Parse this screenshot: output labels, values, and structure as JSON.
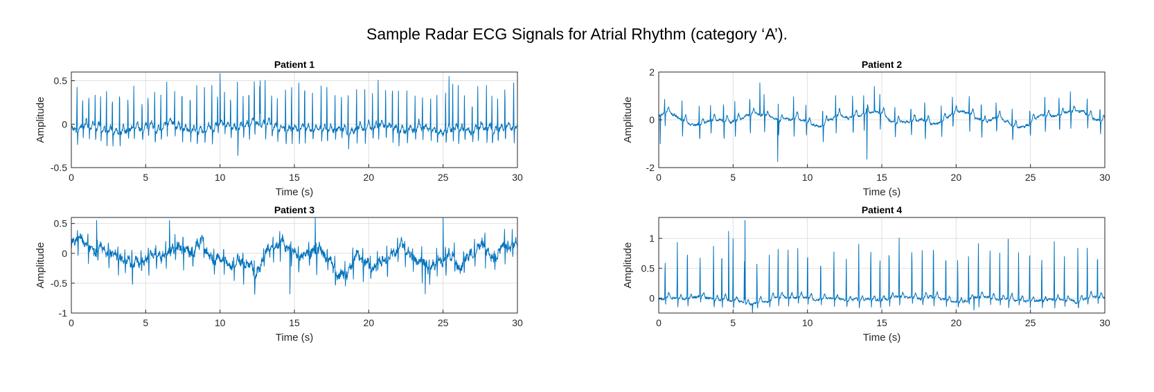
{
  "figure": {
    "title": "Sample Radar ECG Signals for Atrial Rhythm (category ‘A’)."
  },
  "colors": {
    "signal": "#0072BD",
    "axes": "#262626",
    "grid": "#dfdfdf",
    "background": "#ffffff"
  },
  "chart_data": [
    {
      "type": "line",
      "title": "Patient 1",
      "xlabel": "Time (s)",
      "ylabel": "Amplitude",
      "xlim": [
        0,
        30
      ],
      "ylim": [
        -0.5,
        0.6
      ],
      "xticks": [
        0,
        5,
        10,
        15,
        20,
        25,
        30
      ],
      "xtick_labels": [
        "0",
        "5",
        "10",
        "15",
        "20",
        "25",
        "30"
      ],
      "yticks": [
        -0.5,
        0,
        0.5
      ],
      "ytick_labels": [
        "-0.5",
        "0",
        "0.5"
      ],
      "grid": true,
      "signal": {
        "baseline": -0.05,
        "noise": 0.04,
        "beat_interval": 0.48,
        "peak": 0.52,
        "dip": -0.17,
        "t_wave": 0.06,
        "wander": 0.02,
        "extremes": [
          [
            10.0,
            0.58
          ],
          [
            11.2,
            -0.36
          ],
          [
            12.7,
            0.5
          ],
          [
            25.4,
            0.55
          ]
        ]
      }
    },
    {
      "type": "line",
      "title": "Patient 2",
      "xlabel": "Time (s)",
      "ylabel": "Amplitude",
      "xlim": [
        0,
        30
      ],
      "ylim": [
        -2,
        2
      ],
      "xticks": [
        0,
        5,
        10,
        15,
        20,
        25,
        30
      ],
      "xtick_labels": [
        "0",
        "5",
        "10",
        "15",
        "20",
        "25",
        "30"
      ],
      "yticks": [
        -2,
        0,
        2
      ],
      "ytick_labels": [
        "-2",
        "0",
        "2"
      ],
      "grid": true,
      "signal": {
        "baseline": 0.05,
        "noise": 0.08,
        "beat_interval": 0.95,
        "peak": 0.9,
        "dip": -0.8,
        "t_wave": 0.25,
        "wander": 0.2,
        "extremes": [
          [
            0.1,
            -1.0
          ],
          [
            6.8,
            1.55
          ],
          [
            8.0,
            -1.75
          ],
          [
            14.0,
            -1.65
          ],
          [
            14.5,
            1.4
          ]
        ]
      }
    },
    {
      "type": "line",
      "title": "Patient 3",
      "xlabel": "Time (s)",
      "ylabel": "Amplitude",
      "xlim": [
        0,
        30
      ],
      "ylim": [
        -1,
        0.6
      ],
      "xticks": [
        0,
        5,
        10,
        15,
        20,
        25,
        30
      ],
      "xtick_labels": [
        "0",
        "5",
        "10",
        "15",
        "20",
        "25",
        "30"
      ],
      "yticks": [
        -1,
        -0.5,
        0,
        0.5
      ],
      "ytick_labels": [
        "-1",
        "-0.5",
        "0",
        "0.5"
      ],
      "grid": true,
      "signal": {
        "baseline": -0.05,
        "noise": 0.12,
        "beat_interval": 0.6,
        "peak": 0.25,
        "dip": -0.3,
        "t_wave": 0.05,
        "wander": 0.15,
        "extremes": [
          [
            1.7,
            0.55
          ],
          [
            6.6,
            0.55
          ],
          [
            14.7,
            -0.68
          ],
          [
            16.4,
            0.6
          ],
          [
            23.8,
            -0.68
          ],
          [
            25.0,
            0.62
          ]
        ]
      }
    },
    {
      "type": "line",
      "title": "Patient 4",
      "xlabel": "Time (s)",
      "ylabel": "Amplitude",
      "xlim": [
        0,
        30
      ],
      "ylim": [
        -0.25,
        1.35
      ],
      "xticks": [
        0,
        5,
        10,
        15,
        20,
        25,
        30
      ],
      "xtick_labels": [
        "0",
        "5",
        "10",
        "15",
        "20",
        "25",
        "30"
      ],
      "yticks": [
        0,
        0.5,
        1
      ],
      "ytick_labels": [
        "0",
        "0.5",
        "1"
      ],
      "grid": true,
      "signal": {
        "baseline": -0.02,
        "noise": 0.03,
        "beat_interval": 0.74,
        "peak": 0.98,
        "dip": -0.15,
        "t_wave": 0.08,
        "wander": 0.02,
        "extremes": [
          [
            5.8,
            1.3
          ],
          [
            4.7,
            1.12
          ],
          [
            6.3,
            -0.24
          ],
          [
            21.2,
            -0.2
          ]
        ]
      }
    }
  ]
}
